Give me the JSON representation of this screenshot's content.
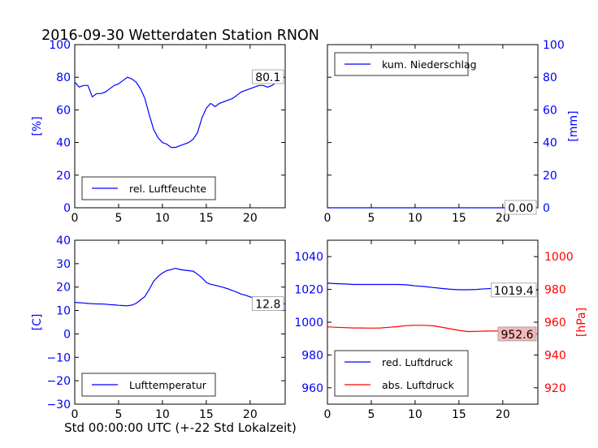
{
  "title": "2016-09-30 Wetterdaten Station RNON",
  "xlabel": "Std 00:00:00 UTC (+-22 Std Lokalzeit)",
  "colors": {
    "blue": "#0000ff",
    "red": "#ff0000",
    "axis": "#000000"
  },
  "chart_data": [
    {
      "id": "humidity",
      "type": "line",
      "ylabel": "[%]",
      "xlim": [
        0,
        24
      ],
      "ylim": [
        0,
        100
      ],
      "xticks": [
        "0",
        "5",
        "10",
        "15",
        "20"
      ],
      "yticks": [
        "0",
        "20",
        "40",
        "60",
        "80",
        "100"
      ],
      "legend": "bottom-left",
      "series": [
        {
          "name": "rel. Luftfeuchte",
          "color": "#0000ff",
          "x": [
            0,
            0.5,
            1,
            1.5,
            2,
            2.5,
            3,
            3.5,
            4,
            4.5,
            5,
            5.5,
            6,
            6.5,
            7,
            7.5,
            8,
            8.5,
            9,
            9.5,
            10,
            10.5,
            11,
            11.5,
            12,
            12.5,
            13,
            13.5,
            14,
            14.5,
            15,
            15.5,
            16,
            16.5,
            17,
            17.5,
            18,
            18.5,
            19,
            19.5,
            20,
            20.5,
            21,
            21.5,
            22,
            22.5,
            23,
            23.5,
            24
          ],
          "y": [
            77,
            74,
            75,
            75,
            68,
            70,
            70,
            71,
            73,
            75,
            76,
            78,
            80,
            79,
            77,
            73,
            67,
            57,
            48,
            43,
            40,
            39,
            37,
            37,
            38,
            39,
            40,
            42,
            46,
            55,
            61,
            64,
            62,
            64,
            65,
            66,
            67,
            69,
            71,
            72,
            73,
            74,
            75,
            75,
            74,
            75,
            77,
            79,
            80.1
          ]
        }
      ],
      "last_value_label": "80.1",
      "yaxis_side": "left",
      "tick_color": "#0000ff"
    },
    {
      "id": "precip",
      "type": "line",
      "ylabel": "[mm]",
      "xlim": [
        0,
        24
      ],
      "ylim": [
        0,
        100
      ],
      "xticks": [
        "0",
        "5",
        "10",
        "15",
        "20"
      ],
      "yticks": [
        "0",
        "20",
        "40",
        "60",
        "80",
        "100"
      ],
      "legend": "top-left",
      "series": [
        {
          "name": "kum. Niederschlag",
          "color": "#0000ff",
          "x": [
            0,
            24
          ],
          "y": [
            0,
            0
          ]
        }
      ],
      "last_value_label": "0.00",
      "yaxis_side": "right",
      "tick_color": "#0000ff"
    },
    {
      "id": "temperature",
      "type": "line",
      "ylabel": "[C]",
      "xlim": [
        0,
        24
      ],
      "ylim": [
        -30,
        40
      ],
      "xticks": [
        "0",
        "5",
        "10",
        "15",
        "20"
      ],
      "yticks": [
        "−30",
        "−20",
        "−10",
        "0",
        "10",
        "20",
        "30",
        "40"
      ],
      "legend": "bottom-left",
      "series": [
        {
          "name": "Lufttemperatur",
          "color": "#0000ff",
          "x": [
            0,
            0.5,
            1,
            1.5,
            2,
            2.5,
            3,
            3.5,
            4,
            4.5,
            5,
            5.5,
            6,
            6.5,
            7,
            7.5,
            8,
            8.5,
            9,
            9.5,
            10,
            10.5,
            11,
            11.5,
            12,
            12.5,
            13,
            13.5,
            14,
            14.5,
            15,
            15.5,
            16,
            16.5,
            17,
            17.5,
            18,
            18.5,
            19,
            19.5,
            20,
            20.5,
            21,
            21.5,
            22,
            22.5,
            23,
            23.5,
            24
          ],
          "y": [
            13.5,
            13.3,
            13.2,
            13.0,
            12.9,
            12.8,
            12.8,
            12.7,
            12.5,
            12.4,
            12.2,
            12.1,
            12.0,
            12.3,
            13.0,
            14.5,
            16.0,
            19.0,
            22.5,
            24.5,
            26.0,
            27.0,
            27.5,
            28.0,
            27.5,
            27.2,
            27.0,
            26.8,
            25.5,
            24.0,
            22.0,
            21.2,
            20.8,
            20.3,
            19.8,
            19.2,
            18.5,
            17.8,
            17.0,
            16.5,
            15.8,
            15.3,
            14.8,
            14.5,
            14.2,
            13.8,
            13.5,
            13.0,
            12.8
          ]
        }
      ],
      "last_value_label": "12.8",
      "yaxis_side": "left",
      "tick_color": "#0000ff"
    },
    {
      "id": "pressure",
      "type": "line",
      "xlim": [
        0,
        24
      ],
      "ylim": [
        950,
        1050
      ],
      "ylim_right": [
        910,
        1010
      ],
      "ylabel_right": "[hPa]",
      "xticks": [
        "0",
        "5",
        "10",
        "15",
        "20"
      ],
      "yticks": [
        "960",
        "980",
        "1000",
        "1020",
        "1040"
      ],
      "yticks_right": [
        "920",
        "940",
        "960",
        "980",
        "1000"
      ],
      "legend": "bottom-left",
      "series": [
        {
          "name": "red. Luftdruck",
          "color": "#0000ff",
          "axis": "left",
          "x": [
            0,
            1,
            2,
            3,
            4,
            5,
            6,
            7,
            8,
            9,
            10,
            11,
            12,
            13,
            14,
            15,
            16,
            17,
            18,
            19,
            20,
            21,
            22,
            23,
            24
          ],
          "y": [
            1023.8,
            1023.5,
            1023.3,
            1023.0,
            1023.0,
            1023.0,
            1023.0,
            1023.0,
            1023.0,
            1022.8,
            1022.2,
            1021.8,
            1021.2,
            1020.6,
            1020.1,
            1019.8,
            1019.8,
            1020.0,
            1020.4,
            1020.6,
            1020.8,
            1020.6,
            1020.2,
            1019.8,
            1019.4
          ]
        },
        {
          "name": "abs. Luftdruck",
          "color": "#ff0000",
          "axis": "right",
          "x": [
            0,
            1,
            2,
            3,
            4,
            5,
            6,
            7,
            8,
            9,
            10,
            11,
            12,
            13,
            14,
            15,
            16,
            17,
            18,
            19,
            20,
            21,
            22,
            23,
            24
          ],
          "y": [
            957.2,
            956.9,
            956.7,
            956.5,
            956.5,
            956.4,
            956.5,
            956.9,
            957.3,
            957.9,
            958.1,
            958.1,
            957.8,
            957.0,
            956.0,
            955.0,
            954.3,
            954.4,
            954.6,
            954.6,
            954.7,
            954.6,
            954.5,
            954.4,
            952.6
          ]
        }
      ],
      "last_value_labels": [
        "1019.4",
        "952.6"
      ],
      "tick_color_left": "#0000ff",
      "tick_color_right": "#ff0000"
    }
  ]
}
